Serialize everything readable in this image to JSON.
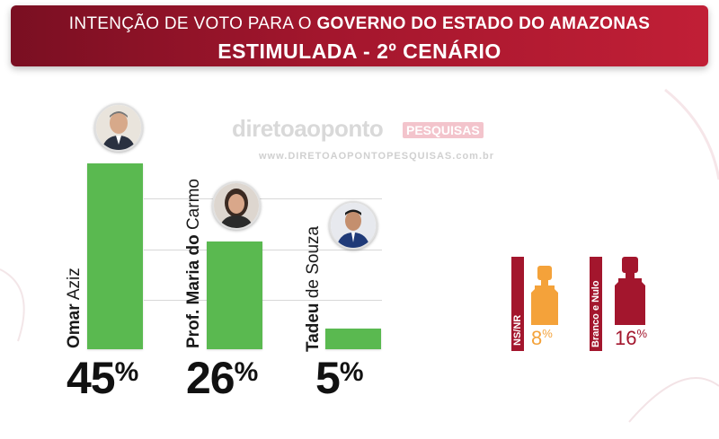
{
  "header": {
    "line1_prefix": "INTENÇÃO DE VOTO PARA O ",
    "line1_bold": "GOVERNO DO ESTADO DO AMAZONAS",
    "line2": "ESTIMULADA - 2º CENÁRIO"
  },
  "watermark": {
    "brand": "diretoaoponto",
    "badge": "PESQUISAS",
    "url": "www.DIRETOAOPONTOPESQUISAS.com.br"
  },
  "colors": {
    "header": "#a3162d",
    "bar": "#5ab950",
    "ns_nr": "#f4a23a",
    "branco_nulo": "#a3162d"
  },
  "chart_data": {
    "type": "bar",
    "title": "INTENÇÃO DE VOTO PARA O GOVERNO DO ESTADO DO AMAZONAS — ESTIMULADA - 2º CENÁRIO",
    "categories": [
      "Omar Aziz",
      "Prof. Maria do Carmo",
      "Tadeu de Souza"
    ],
    "values": [
      45,
      26,
      5
    ],
    "labels": [
      {
        "bold": "Omar",
        "rest": " Aziz"
      },
      {
        "bold": "Prof. Maria do",
        "rest": " Carmo"
      },
      {
        "bold": "Tadeu",
        "rest": " de Souza"
      }
    ],
    "pct_text": [
      "45",
      "26",
      "5"
    ],
    "others": [
      {
        "label": "NS/NR",
        "value": 8,
        "pct_text": "8",
        "icon": "person-silhouette-icon",
        "color": "#f4a23a"
      },
      {
        "label": "Branco e Nulo",
        "value": 16,
        "pct_text": "16",
        "icon": "person-silhouette-icon",
        "color": "#a3162d"
      }
    ],
    "unit": "%",
    "grid": true
  }
}
